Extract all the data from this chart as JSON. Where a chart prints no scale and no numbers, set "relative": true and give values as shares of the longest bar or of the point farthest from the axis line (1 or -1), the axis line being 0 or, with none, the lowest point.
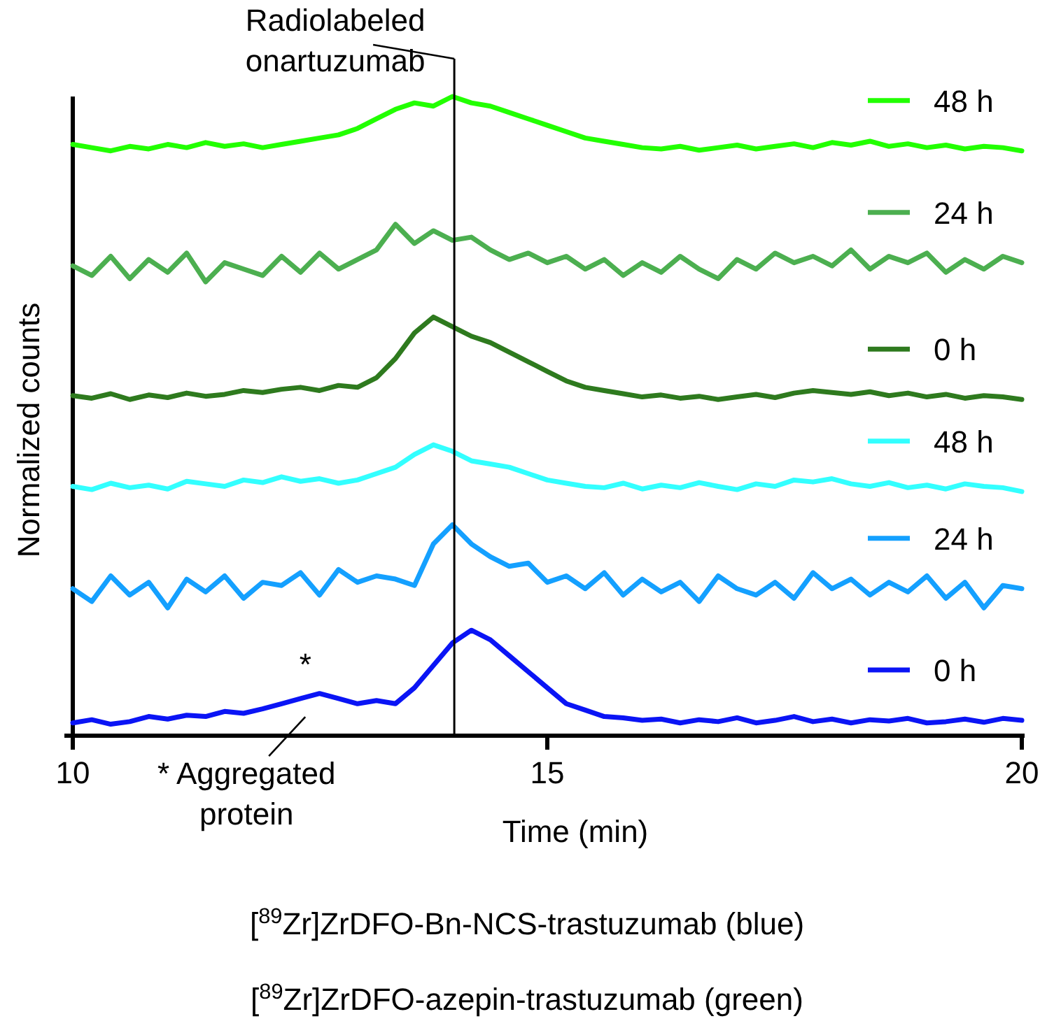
{
  "chart_data": {
    "type": "line",
    "relative": true,
    "xlabel": "Time (min)",
    "ylabel": "Normalized counts",
    "xlim": [
      10,
      20
    ],
    "xticks": [
      10,
      15,
      20
    ],
    "legend": "right",
    "grid": false,
    "marker": "none",
    "line_style": "solid",
    "x": [
      10,
      10.2,
      10.4,
      10.6,
      10.8,
      11,
      11.2,
      11.4,
      11.6,
      11.8,
      12,
      12.2,
      12.4,
      12.6,
      12.8,
      13,
      13.2,
      13.4,
      13.6,
      13.8,
      14,
      14.2,
      14.4,
      14.6,
      14.8,
      15,
      15.2,
      15.4,
      15.6,
      15.8,
      16,
      16.2,
      16.4,
      16.6,
      16.8,
      17,
      17.2,
      17.4,
      17.6,
      17.8,
      18,
      18.2,
      18.4,
      18.6,
      18.8,
      19,
      19.2,
      19.4,
      19.6,
      19.8,
      20
    ],
    "series": [
      {
        "name": "48 h",
        "color": "#22ff00",
        "values": [
          0.925,
          0.92,
          0.915,
          0.922,
          0.918,
          0.925,
          0.92,
          0.928,
          0.922,
          0.926,
          0.92,
          0.925,
          0.93,
          0.935,
          0.94,
          0.95,
          0.965,
          0.98,
          0.99,
          0.985,
          1,
          0.99,
          0.985,
          0.975,
          0.965,
          0.955,
          0.945,
          0.935,
          0.93,
          0.925,
          0.92,
          0.918,
          0.922,
          0.916,
          0.92,
          0.924,
          0.918,
          0.922,
          0.926,
          0.92,
          0.928,
          0.924,
          0.93,
          0.922,
          0.926,
          0.92,
          0.924,
          0.918,
          0.922,
          0.92,
          0.915
        ]
      },
      {
        "name": "24 h",
        "color": "#4caf50",
        "values": [
          0.735,
          0.72,
          0.75,
          0.715,
          0.745,
          0.725,
          0.755,
          0.71,
          0.74,
          0.73,
          0.72,
          0.75,
          0.725,
          0.755,
          0.73,
          0.745,
          0.76,
          0.8,
          0.77,
          0.79,
          0.775,
          0.78,
          0.76,
          0.745,
          0.755,
          0.74,
          0.75,
          0.73,
          0.745,
          0.72,
          0.74,
          0.725,
          0.75,
          0.73,
          0.715,
          0.745,
          0.73,
          0.755,
          0.74,
          0.75,
          0.735,
          0.76,
          0.73,
          0.75,
          0.74,
          0.755,
          0.725,
          0.745,
          0.73,
          0.75,
          0.74
        ]
      },
      {
        "name": "0 h",
        "color": "#2e7a1e",
        "values": [
          0.532,
          0.528,
          0.535,
          0.526,
          0.533,
          0.529,
          0.536,
          0.531,
          0.534,
          0.54,
          0.537,
          0.542,
          0.545,
          0.54,
          0.548,
          0.545,
          0.56,
          0.59,
          0.63,
          0.655,
          0.64,
          0.625,
          0.615,
          0.6,
          0.585,
          0.57,
          0.555,
          0.545,
          0.54,
          0.535,
          0.53,
          0.533,
          0.528,
          0.531,
          0.526,
          0.53,
          0.534,
          0.529,
          0.536,
          0.54,
          0.537,
          0.534,
          0.538,
          0.532,
          0.536,
          0.53,
          0.534,
          0.528,
          0.532,
          0.53,
          0.526
        ]
      },
      {
        "name": "48 h",
        "color": "#33ffff",
        "values": [
          0.39,
          0.385,
          0.395,
          0.388,
          0.392,
          0.386,
          0.398,
          0.394,
          0.39,
          0.4,
          0.396,
          0.405,
          0.398,
          0.402,
          0.395,
          0.4,
          0.41,
          0.42,
          0.44,
          0.455,
          0.445,
          0.43,
          0.425,
          0.42,
          0.41,
          0.4,
          0.395,
          0.39,
          0.388,
          0.395,
          0.386,
          0.392,
          0.388,
          0.396,
          0.39,
          0.385,
          0.394,
          0.39,
          0.4,
          0.397,
          0.402,
          0.394,
          0.39,
          0.396,
          0.388,
          0.392,
          0.386,
          0.394,
          0.39,
          0.388,
          0.382
        ]
      },
      {
        "name": "24 h",
        "color": "#14a0ff",
        "values": [
          0.23,
          0.21,
          0.25,
          0.22,
          0.24,
          0.2,
          0.245,
          0.225,
          0.25,
          0.215,
          0.24,
          0.235,
          0.255,
          0.22,
          0.26,
          0.24,
          0.25,
          0.245,
          0.235,
          0.3,
          0.33,
          0.3,
          0.28,
          0.265,
          0.27,
          0.24,
          0.25,
          0.23,
          0.255,
          0.22,
          0.245,
          0.225,
          0.24,
          0.21,
          0.25,
          0.23,
          0.22,
          0.24,
          0.215,
          0.255,
          0.23,
          0.245,
          0.22,
          0.24,
          0.225,
          0.25,
          0.215,
          0.24,
          0.2,
          0.235,
          0.23
        ]
      },
      {
        "name": "0 h",
        "color": "#0a14f5",
        "values": [
          0.02,
          0.025,
          0.018,
          0.022,
          0.03,
          0.026,
          0.032,
          0.03,
          0.038,
          0.035,
          0.042,
          0.05,
          0.058,
          0.066,
          0.058,
          0.05,
          0.055,
          0.05,
          0.075,
          0.11,
          0.145,
          0.165,
          0.15,
          0.125,
          0.1,
          0.075,
          0.05,
          0.04,
          0.03,
          0.028,
          0.024,
          0.026,
          0.02,
          0.025,
          0.022,
          0.028,
          0.02,
          0.024,
          0.03,
          0.022,
          0.026,
          0.02,
          0.025,
          0.023,
          0.027,
          0.02,
          0.022,
          0.026,
          0.021,
          0.027,
          0.024
        ]
      }
    ],
    "ref_lines": [
      {
        "axis": "x",
        "value": 14.02,
        "label": "Radiolabeled onartuzumab",
        "color": "#000000"
      }
    ],
    "annotations": [
      {
        "text": "*",
        "x": 12.45,
        "y": 0.06
      },
      {
        "text": "* Aggregated protein",
        "x": 12.45,
        "y": 0.06
      },
      "[$^{89}$Zr]ZrDFO-Bn-NCS-trastuzumab (blue)",
      "[$^{89}$Zr]ZrDFO-azepin-trastuzumab (green)"
    ]
  }
}
